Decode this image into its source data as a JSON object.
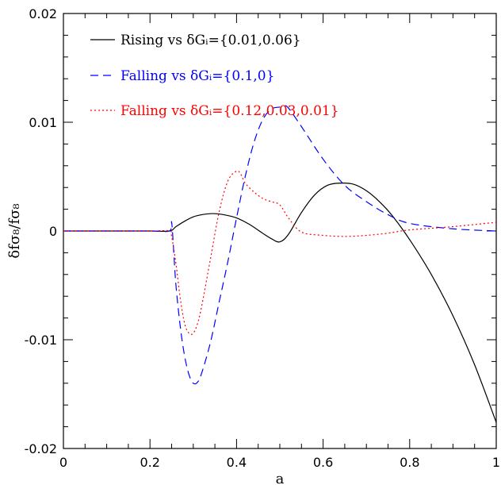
{
  "chart_data": {
    "type": "line",
    "xlabel": "a",
    "ylabel": "δfσ₈/fσ₈",
    "xlim": [
      0,
      1
    ],
    "ylim": [
      -0.02,
      0.02
    ],
    "x_ticks": [
      0,
      0.2,
      0.4,
      0.6,
      0.8,
      1
    ],
    "x_tick_labels": [
      "0",
      "0.2",
      "0.4",
      "0.6",
      "0.8",
      "1"
    ],
    "y_ticks": [
      -0.02,
      -0.01,
      0,
      0.01,
      0.02
    ],
    "y_tick_labels": [
      "-0.02",
      "-0.01",
      "0",
      "0.01",
      "0.02"
    ],
    "grid": false,
    "legend_position": "top-left",
    "series": [
      {
        "name": "Rising vs δGᵢ={0.01,0.06}",
        "color": "#000000",
        "dash": "solid",
        "x": [
          0,
          0.1,
          0.2,
          0.245,
          0.26,
          0.28,
          0.3,
          0.32,
          0.345,
          0.37,
          0.4,
          0.43,
          0.46,
          0.48,
          0.5,
          0.52,
          0.55,
          0.58,
          0.61,
          0.64,
          0.67,
          0.7,
          0.73,
          0.76,
          0.8,
          0.85,
          0.9,
          0.95,
          1.0
        ],
        "y": [
          0,
          0,
          0,
          0,
          0.0004,
          0.0009,
          0.0013,
          0.0015,
          0.0016,
          0.0015,
          0.0012,
          0.0006,
          -0.0002,
          -0.0007,
          -0.001,
          -0.0003,
          0.0017,
          0.0033,
          0.0042,
          0.0044,
          0.0043,
          0.0037,
          0.0027,
          0.0014,
          -0.0008,
          -0.004,
          -0.0078,
          -0.0123,
          -0.0176
        ]
      },
      {
        "name": "Falling vs δGᵢ={0.1,0}",
        "color": "#0000ff",
        "dash": "dashed",
        "x": [
          0,
          0.1,
          0.2,
          0.245,
          0.25,
          0.255,
          0.26,
          0.27,
          0.28,
          0.29,
          0.3,
          0.31,
          0.32,
          0.34,
          0.36,
          0.38,
          0.4,
          0.42,
          0.44,
          0.46,
          0.48,
          0.5,
          0.51,
          0.52,
          0.55,
          0.6,
          0.65,
          0.7,
          0.75,
          0.8,
          0.9,
          1.0
        ],
        "y": [
          0,
          0,
          0,
          0,
          0.0008,
          -0.002,
          -0.005,
          -0.0088,
          -0.0115,
          -0.0132,
          -0.014,
          -0.0139,
          -0.013,
          -0.0102,
          -0.0065,
          -0.0028,
          0.0012,
          0.005,
          0.0081,
          0.0102,
          0.0112,
          0.0114,
          0.0115,
          0.0113,
          0.0096,
          0.0066,
          0.0042,
          0.0027,
          0.0015,
          0.0007,
          0.0002,
          0
        ]
      },
      {
        "name": "Falling vs δGᵢ={0.12,0.03,0.01}",
        "color": "#ff0000",
        "dash": "dotted",
        "x": [
          0,
          0.1,
          0.2,
          0.245,
          0.25,
          0.26,
          0.27,
          0.28,
          0.29,
          0.3,
          0.31,
          0.32,
          0.34,
          0.36,
          0.38,
          0.4,
          0.41,
          0.42,
          0.44,
          0.46,
          0.48,
          0.5,
          0.52,
          0.55,
          0.6,
          0.65,
          0.7,
          0.75,
          0.8,
          0.9,
          1.0
        ],
        "y": [
          0,
          0,
          0,
          0,
          -0.0005,
          -0.003,
          -0.0062,
          -0.0085,
          -0.0094,
          -0.0094,
          -0.0085,
          -0.0068,
          -0.0025,
          0.0018,
          0.0046,
          0.0055,
          0.0052,
          0.0044,
          0.0036,
          0.003,
          0.0027,
          0.0024,
          0.0012,
          -0.0001,
          -0.0004,
          -0.0005,
          -0.0004,
          -0.0002,
          0.0001,
          0.0004,
          0.0008
        ]
      }
    ]
  }
}
